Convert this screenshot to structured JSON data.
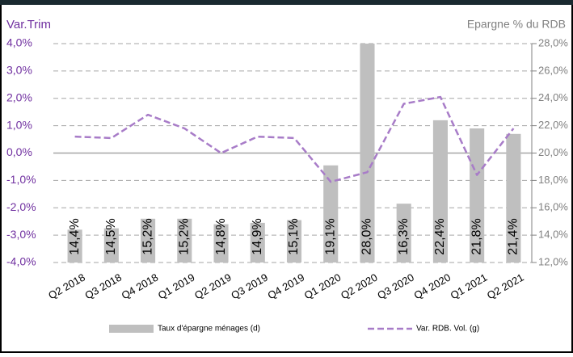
{
  "chart_data": {
    "type": "combo",
    "y_label": "Var.Trim",
    "y2_label": "Epargne % du RDB",
    "categories": [
      "Q2 2018",
      "Q3 2018",
      "Q4 2018",
      "Q1 2019",
      "Q2 2019",
      "Q3 2019",
      "Q4 2019",
      "Q1 2020",
      "Q2 2020",
      "Q3 2020",
      "Q4 2020",
      "Q1 2021",
      "Q2 2021"
    ],
    "series": [
      {
        "name": "Taux d'épargne ménages (d)",
        "type": "bar",
        "axis": "y2",
        "color": "#bfbfbf",
        "values": [
          14.4,
          14.5,
          15.2,
          15.2,
          14.8,
          14.9,
          15.1,
          19.1,
          28.0,
          16.3,
          22.4,
          21.8,
          21.4
        ],
        "value_labels": [
          "14,4%",
          "14,5%",
          "15,2%",
          "15,2%",
          "14,8%",
          "14,9%",
          "15,1%",
          "19,1%",
          "28,0%",
          "16,3%",
          "22,4%",
          "21,8%",
          "21,4%"
        ]
      },
      {
        "name": "Var. RDB. Vol. (g)",
        "type": "line",
        "axis": "y",
        "color": "#a87cc8",
        "dashed": true,
        "values": [
          0.6,
          0.55,
          1.4,
          0.9,
          0.0,
          0.6,
          0.55,
          -1.05,
          -0.7,
          1.8,
          2.05,
          -0.8,
          0.9
        ]
      }
    ],
    "ylim": [
      -4,
      4
    ],
    "yticks": [
      {
        "value": -4,
        "label": "-4,0%"
      },
      {
        "value": -3,
        "label": "-3,0%"
      },
      {
        "value": -2,
        "label": "-2,0%"
      },
      {
        "value": -1,
        "label": "-1,0%"
      },
      {
        "value": 0,
        "label": "0,0%"
      },
      {
        "value": 1,
        "label": "1,0%"
      },
      {
        "value": 2,
        "label": "2,0%"
      },
      {
        "value": 3,
        "label": "3,0%"
      },
      {
        "value": 4,
        "label": "4,0%"
      }
    ],
    "y2lim": [
      12,
      28
    ],
    "y2ticks": [
      {
        "value": 12,
        "label": "12,0%"
      },
      {
        "value": 14,
        "label": "14,0%"
      },
      {
        "value": 16,
        "label": "16,0%"
      },
      {
        "value": 18,
        "label": "18,0%"
      },
      {
        "value": 20,
        "label": "20,0%"
      },
      {
        "value": 22,
        "label": "22,0%"
      },
      {
        "value": 24,
        "label": "24,0%"
      },
      {
        "value": 26,
        "label": "26,0%"
      },
      {
        "value": 28,
        "label": "28,0%"
      }
    ],
    "grid": true,
    "legend": "bottom"
  }
}
